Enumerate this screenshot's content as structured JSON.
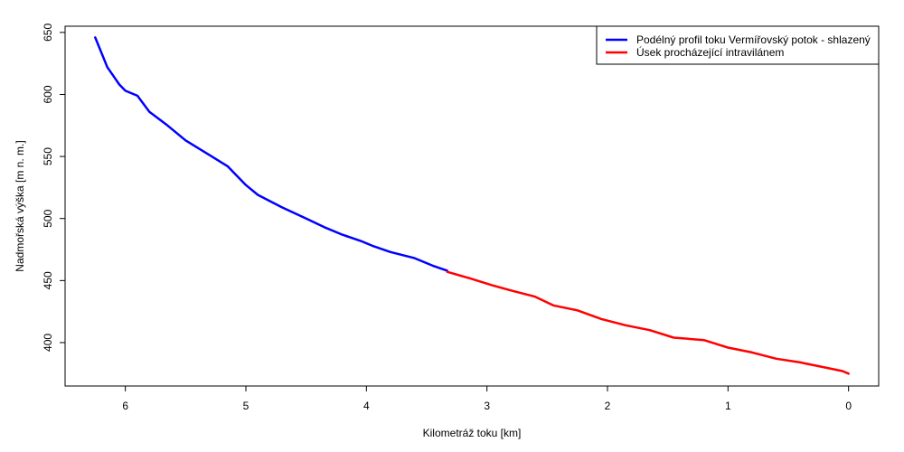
{
  "chart_data": {
    "type": "line",
    "xlabel": "Kilometráž toku [km]",
    "ylabel": "Nadmořská výška [m n. m.]",
    "xlim": [
      6.5,
      -0.25
    ],
    "ylim": [
      365,
      655
    ],
    "x_reversed": true,
    "xticks": [
      6,
      5,
      4,
      3,
      2,
      1,
      0
    ],
    "yticks": [
      400,
      450,
      500,
      550,
      600,
      650
    ],
    "grid": false,
    "legend_position": "top-right",
    "series": [
      {
        "name": "Podélný profil toku Vermířovský potok - shlazený",
        "color": "#0000ff",
        "x": [
          6.25,
          6.15,
          6.05,
          6.0,
          5.9,
          5.8,
          5.65,
          5.5,
          5.3,
          5.15,
          5.0,
          4.9,
          4.7,
          4.5,
          4.35,
          4.2,
          4.05,
          3.95,
          3.8,
          3.6,
          3.45,
          3.33
        ],
        "y": [
          646,
          622,
          608,
          603,
          599,
          586,
          575,
          563,
          551,
          542,
          527,
          519,
          509,
          500,
          493,
          487,
          482,
          478,
          473,
          468,
          462,
          458
        ]
      },
      {
        "name": "Úsek procházející intravilánem",
        "color": "#ff0000",
        "x": [
          3.33,
          3.15,
          2.95,
          2.8,
          2.6,
          2.45,
          2.25,
          2.05,
          1.85,
          1.65,
          1.45,
          1.2,
          1.0,
          0.8,
          0.6,
          0.4,
          0.2,
          0.05,
          0.0
        ],
        "y": [
          457,
          452,
          446,
          442,
          437,
          430,
          426,
          419,
          414,
          410,
          404,
          402,
          396,
          392,
          387,
          384,
          380,
          377,
          375
        ]
      }
    ]
  }
}
